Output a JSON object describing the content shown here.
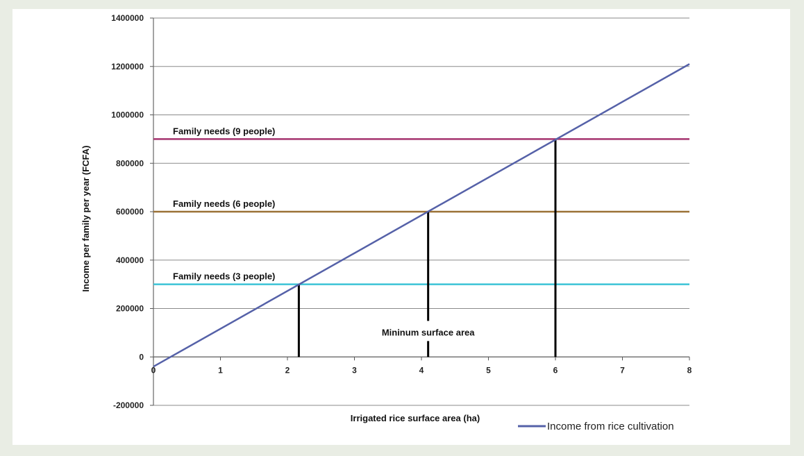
{
  "chart_data": {
    "type": "line",
    "title": "",
    "xlabel": "Irrigated rice surface area (ha)",
    "ylabel": "Income per family per year (FCFA)",
    "xlim": [
      0,
      8
    ],
    "ylim": [
      -200000,
      1400000
    ],
    "x_ticks": [
      "0",
      "1",
      "2",
      "3",
      "4",
      "5",
      "6",
      "7",
      "8"
    ],
    "y_ticks": [
      "1400000",
      "1200000",
      "1000000",
      "800000",
      "600000",
      "400000",
      "200000",
      "0",
      "-200000"
    ],
    "grid": "horizontal",
    "legend_position": "bottom-right",
    "series": [
      {
        "name": "Income from rice cultivation",
        "color": "#5561a8",
        "x": [
          0,
          8
        ],
        "y": [
          -40000,
          1210000
        ]
      }
    ],
    "thresholds": [
      {
        "label": "Family needs (9 people)",
        "value": 900000,
        "color": "#a5336e"
      },
      {
        "label": "Family needs (6 people)",
        "value": 600000,
        "color": "#9b7136"
      },
      {
        "label": "Family needs (3 people)",
        "value": 300000,
        "color": "#3cc3d6"
      }
    ],
    "drop_lines": [
      {
        "x": 2.17,
        "y": 300000
      },
      {
        "x": 4.1,
        "y": 600000
      },
      {
        "x": 6.0,
        "y": 900000
      }
    ],
    "annotation": {
      "text": "Mininum surface area",
      "x": 4.1,
      "y": 100000
    }
  }
}
